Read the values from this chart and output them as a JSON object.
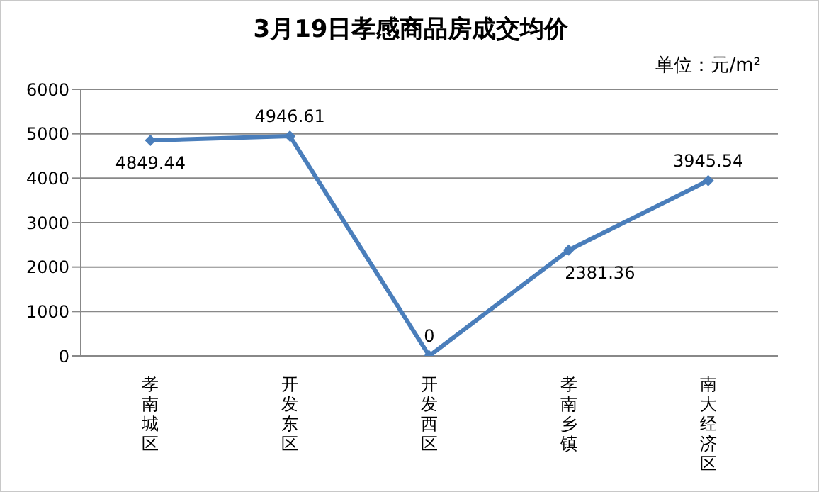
{
  "chart_data": {
    "type": "line",
    "title": "3月19日孝感商品房成交均价",
    "annotations": [
      "单位：元/m²"
    ],
    "categories": [
      "孝南城区",
      "开发东区",
      "开发西区",
      "孝南乡镇",
      "南大经济区"
    ],
    "series": [
      {
        "color": "#4a7ebb",
        "values": [
          4849.44,
          4946.61,
          0,
          2381.36,
          3945.54
        ]
      }
    ],
    "ylim": [
      0,
      6000
    ],
    "yticks": [
      0,
      1000,
      2000,
      3000,
      4000,
      5000,
      6000
    ],
    "grid": "y",
    "legend": false,
    "marker": "diamond",
    "data_labels": true
  }
}
